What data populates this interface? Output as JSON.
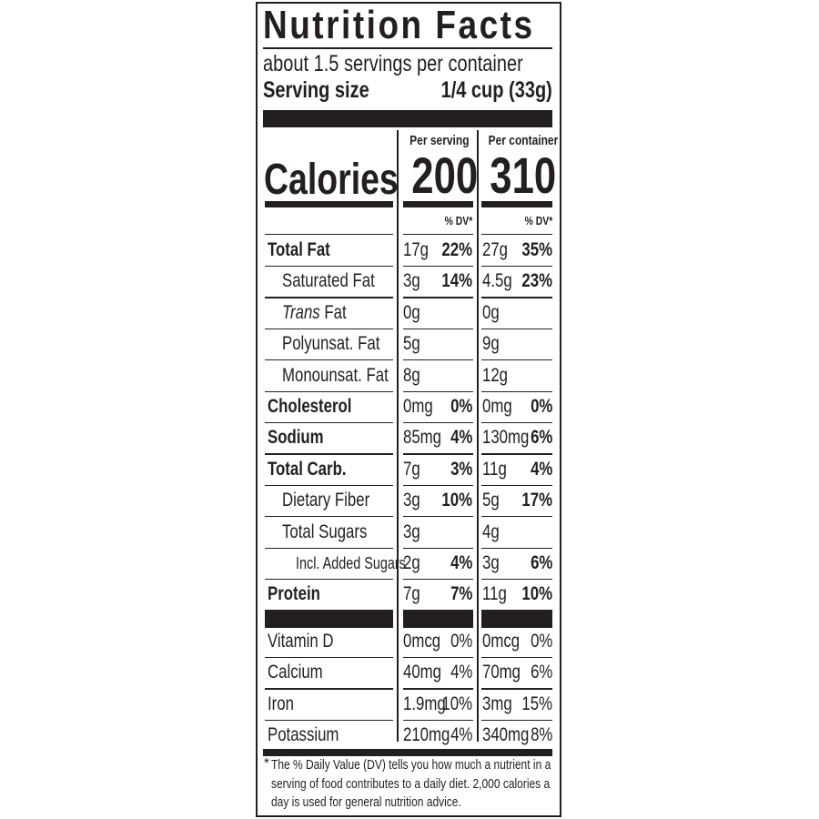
{
  "title": "Nutrition Facts",
  "servings_per_container": "about 1.5 servings per container",
  "serving_size_label": "Serving size",
  "serving_size_value": "1/4 cup (33g)",
  "per_serving_label": "Per serving",
  "per_container_label": "Per container",
  "calories_label": "Calories",
  "calories_per_serving": "200",
  "calories_per_container": "310",
  "dv_header": "% DV*",
  "nutrients": [
    {
      "label": "Total Fat",
      "bold": true,
      "indent": 0,
      "serving_amount": "17g",
      "serving_dv": "22%",
      "container_amount": "27g",
      "container_dv": "35%"
    },
    {
      "label": "Saturated Fat",
      "bold": false,
      "indent": 1,
      "serving_amount": "3g",
      "serving_dv": "14%",
      "container_amount": "4.5g",
      "container_dv": "23%"
    },
    {
      "label_italic": "Trans",
      "label": " Fat",
      "bold": false,
      "indent": 1,
      "serving_amount": "0g",
      "serving_dv": "",
      "container_amount": "0g",
      "container_dv": ""
    },
    {
      "label": "Polyunsat. Fat",
      "bold": false,
      "indent": 1,
      "serving_amount": "5g",
      "serving_dv": "",
      "container_amount": "9g",
      "container_dv": ""
    },
    {
      "label": "Monounsat. Fat",
      "bold": false,
      "indent": 1,
      "serving_amount": "8g",
      "serving_dv": "",
      "container_amount": "12g",
      "container_dv": ""
    },
    {
      "label": "Cholesterol",
      "bold": true,
      "indent": 0,
      "serving_amount": "0mg",
      "serving_dv": "0%",
      "container_amount": "0mg",
      "container_dv": "0%"
    },
    {
      "label": "Sodium",
      "bold": true,
      "indent": 0,
      "serving_amount": "85mg",
      "serving_dv": "4%",
      "container_amount": "130mg",
      "container_dv": "6%"
    },
    {
      "label": "Total Carb.",
      "bold": true,
      "indent": 0,
      "serving_amount": "7g",
      "serving_dv": "3%",
      "container_amount": "11g",
      "container_dv": "4%"
    },
    {
      "label": "Dietary Fiber",
      "bold": false,
      "indent": 1,
      "serving_amount": "3g",
      "serving_dv": "10%",
      "container_amount": "5g",
      "container_dv": "17%"
    },
    {
      "label": "Total Sugars",
      "bold": false,
      "indent": 1,
      "serving_amount": "3g",
      "serving_dv": "",
      "container_amount": "4g",
      "container_dv": ""
    },
    {
      "label": "Incl. Added Sugars",
      "bold": false,
      "indent": 2,
      "serving_amount": "2g",
      "serving_dv": "4%",
      "container_amount": "3g",
      "container_dv": "6%"
    },
    {
      "label": "Protein",
      "bold": true,
      "indent": 0,
      "serving_amount": "7g",
      "serving_dv": "7%",
      "container_amount": "11g",
      "container_dv": "10%"
    }
  ],
  "micronutrients": [
    {
      "label": "Vitamin D",
      "serving_amount": "0mcg",
      "serving_dv": "0%",
      "container_amount": "0mcg",
      "container_dv": "0%"
    },
    {
      "label": "Calcium",
      "serving_amount": "40mg",
      "serving_dv": "4%",
      "container_amount": "70mg",
      "container_dv": "6%"
    },
    {
      "label": "Iron",
      "serving_amount": "1.9mg",
      "serving_dv": "10%",
      "container_amount": "3mg",
      "container_dv": "15%"
    },
    {
      "label": "Potassium",
      "serving_amount": "210mg",
      "serving_dv": "4%",
      "container_amount": "340mg",
      "container_dv": "8%"
    }
  ],
  "footnote": {
    "asterisk": "*",
    "line1": "The % Daily Value (DV) tells you how much a nutrient in a",
    "line2": "serving of food contributes to a daily diet. 2,000 calories a",
    "line3": "day is used for general nutrition advice."
  }
}
